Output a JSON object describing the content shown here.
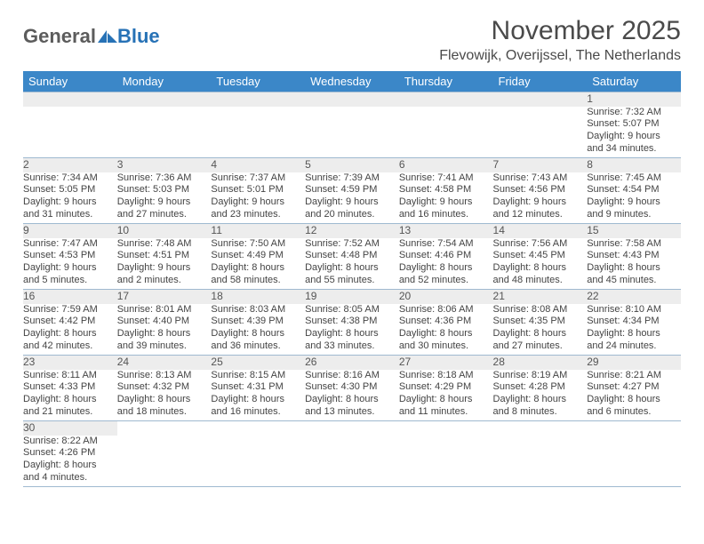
{
  "brand": {
    "part1": "General",
    "part2": "Blue"
  },
  "title": "November 2025",
  "location": "Flevowijk, Overijssel, The Netherlands",
  "colors": {
    "header_bg": "#3b87c8",
    "header_text": "#ffffff",
    "daynum_bg": "#ededed",
    "border": "#9fb9d0",
    "brand_gray": "#5c5c5c",
    "brand_blue": "#2772b6",
    "text": "#444444"
  },
  "weekdays": [
    "Sunday",
    "Monday",
    "Tuesday",
    "Wednesday",
    "Thursday",
    "Friday",
    "Saturday"
  ],
  "weeks": [
    [
      {
        "num": "",
        "sunrise": "",
        "sunset": "",
        "daylight1": "",
        "daylight2": ""
      },
      {
        "num": "",
        "sunrise": "",
        "sunset": "",
        "daylight1": "",
        "daylight2": ""
      },
      {
        "num": "",
        "sunrise": "",
        "sunset": "",
        "daylight1": "",
        "daylight2": ""
      },
      {
        "num": "",
        "sunrise": "",
        "sunset": "",
        "daylight1": "",
        "daylight2": ""
      },
      {
        "num": "",
        "sunrise": "",
        "sunset": "",
        "daylight1": "",
        "daylight2": ""
      },
      {
        "num": "",
        "sunrise": "",
        "sunset": "",
        "daylight1": "",
        "daylight2": ""
      },
      {
        "num": "1",
        "sunrise": "Sunrise: 7:32 AM",
        "sunset": "Sunset: 5:07 PM",
        "daylight1": "Daylight: 9 hours",
        "daylight2": "and 34 minutes."
      }
    ],
    [
      {
        "num": "2",
        "sunrise": "Sunrise: 7:34 AM",
        "sunset": "Sunset: 5:05 PM",
        "daylight1": "Daylight: 9 hours",
        "daylight2": "and 31 minutes."
      },
      {
        "num": "3",
        "sunrise": "Sunrise: 7:36 AM",
        "sunset": "Sunset: 5:03 PM",
        "daylight1": "Daylight: 9 hours",
        "daylight2": "and 27 minutes."
      },
      {
        "num": "4",
        "sunrise": "Sunrise: 7:37 AM",
        "sunset": "Sunset: 5:01 PM",
        "daylight1": "Daylight: 9 hours",
        "daylight2": "and 23 minutes."
      },
      {
        "num": "5",
        "sunrise": "Sunrise: 7:39 AM",
        "sunset": "Sunset: 4:59 PM",
        "daylight1": "Daylight: 9 hours",
        "daylight2": "and 20 minutes."
      },
      {
        "num": "6",
        "sunrise": "Sunrise: 7:41 AM",
        "sunset": "Sunset: 4:58 PM",
        "daylight1": "Daylight: 9 hours",
        "daylight2": "and 16 minutes."
      },
      {
        "num": "7",
        "sunrise": "Sunrise: 7:43 AM",
        "sunset": "Sunset: 4:56 PM",
        "daylight1": "Daylight: 9 hours",
        "daylight2": "and 12 minutes."
      },
      {
        "num": "8",
        "sunrise": "Sunrise: 7:45 AM",
        "sunset": "Sunset: 4:54 PM",
        "daylight1": "Daylight: 9 hours",
        "daylight2": "and 9 minutes."
      }
    ],
    [
      {
        "num": "9",
        "sunrise": "Sunrise: 7:47 AM",
        "sunset": "Sunset: 4:53 PM",
        "daylight1": "Daylight: 9 hours",
        "daylight2": "and 5 minutes."
      },
      {
        "num": "10",
        "sunrise": "Sunrise: 7:48 AM",
        "sunset": "Sunset: 4:51 PM",
        "daylight1": "Daylight: 9 hours",
        "daylight2": "and 2 minutes."
      },
      {
        "num": "11",
        "sunrise": "Sunrise: 7:50 AM",
        "sunset": "Sunset: 4:49 PM",
        "daylight1": "Daylight: 8 hours",
        "daylight2": "and 58 minutes."
      },
      {
        "num": "12",
        "sunrise": "Sunrise: 7:52 AM",
        "sunset": "Sunset: 4:48 PM",
        "daylight1": "Daylight: 8 hours",
        "daylight2": "and 55 minutes."
      },
      {
        "num": "13",
        "sunrise": "Sunrise: 7:54 AM",
        "sunset": "Sunset: 4:46 PM",
        "daylight1": "Daylight: 8 hours",
        "daylight2": "and 52 minutes."
      },
      {
        "num": "14",
        "sunrise": "Sunrise: 7:56 AM",
        "sunset": "Sunset: 4:45 PM",
        "daylight1": "Daylight: 8 hours",
        "daylight2": "and 48 minutes."
      },
      {
        "num": "15",
        "sunrise": "Sunrise: 7:58 AM",
        "sunset": "Sunset: 4:43 PM",
        "daylight1": "Daylight: 8 hours",
        "daylight2": "and 45 minutes."
      }
    ],
    [
      {
        "num": "16",
        "sunrise": "Sunrise: 7:59 AM",
        "sunset": "Sunset: 4:42 PM",
        "daylight1": "Daylight: 8 hours",
        "daylight2": "and 42 minutes."
      },
      {
        "num": "17",
        "sunrise": "Sunrise: 8:01 AM",
        "sunset": "Sunset: 4:40 PM",
        "daylight1": "Daylight: 8 hours",
        "daylight2": "and 39 minutes."
      },
      {
        "num": "18",
        "sunrise": "Sunrise: 8:03 AM",
        "sunset": "Sunset: 4:39 PM",
        "daylight1": "Daylight: 8 hours",
        "daylight2": "and 36 minutes."
      },
      {
        "num": "19",
        "sunrise": "Sunrise: 8:05 AM",
        "sunset": "Sunset: 4:38 PM",
        "daylight1": "Daylight: 8 hours",
        "daylight2": "and 33 minutes."
      },
      {
        "num": "20",
        "sunrise": "Sunrise: 8:06 AM",
        "sunset": "Sunset: 4:36 PM",
        "daylight1": "Daylight: 8 hours",
        "daylight2": "and 30 minutes."
      },
      {
        "num": "21",
        "sunrise": "Sunrise: 8:08 AM",
        "sunset": "Sunset: 4:35 PM",
        "daylight1": "Daylight: 8 hours",
        "daylight2": "and 27 minutes."
      },
      {
        "num": "22",
        "sunrise": "Sunrise: 8:10 AM",
        "sunset": "Sunset: 4:34 PM",
        "daylight1": "Daylight: 8 hours",
        "daylight2": "and 24 minutes."
      }
    ],
    [
      {
        "num": "23",
        "sunrise": "Sunrise: 8:11 AM",
        "sunset": "Sunset: 4:33 PM",
        "daylight1": "Daylight: 8 hours",
        "daylight2": "and 21 minutes."
      },
      {
        "num": "24",
        "sunrise": "Sunrise: 8:13 AM",
        "sunset": "Sunset: 4:32 PM",
        "daylight1": "Daylight: 8 hours",
        "daylight2": "and 18 minutes."
      },
      {
        "num": "25",
        "sunrise": "Sunrise: 8:15 AM",
        "sunset": "Sunset: 4:31 PM",
        "daylight1": "Daylight: 8 hours",
        "daylight2": "and 16 minutes."
      },
      {
        "num": "26",
        "sunrise": "Sunrise: 8:16 AM",
        "sunset": "Sunset: 4:30 PM",
        "daylight1": "Daylight: 8 hours",
        "daylight2": "and 13 minutes."
      },
      {
        "num": "27",
        "sunrise": "Sunrise: 8:18 AM",
        "sunset": "Sunset: 4:29 PM",
        "daylight1": "Daylight: 8 hours",
        "daylight2": "and 11 minutes."
      },
      {
        "num": "28",
        "sunrise": "Sunrise: 8:19 AM",
        "sunset": "Sunset: 4:28 PM",
        "daylight1": "Daylight: 8 hours",
        "daylight2": "and 8 minutes."
      },
      {
        "num": "29",
        "sunrise": "Sunrise: 8:21 AM",
        "sunset": "Sunset: 4:27 PM",
        "daylight1": "Daylight: 8 hours",
        "daylight2": "and 6 minutes."
      }
    ],
    [
      {
        "num": "30",
        "sunrise": "Sunrise: 8:22 AM",
        "sunset": "Sunset: 4:26 PM",
        "daylight1": "Daylight: 8 hours",
        "daylight2": "and 4 minutes."
      },
      {
        "num": "",
        "sunrise": "",
        "sunset": "",
        "daylight1": "",
        "daylight2": ""
      },
      {
        "num": "",
        "sunrise": "",
        "sunset": "",
        "daylight1": "",
        "daylight2": ""
      },
      {
        "num": "",
        "sunrise": "",
        "sunset": "",
        "daylight1": "",
        "daylight2": ""
      },
      {
        "num": "",
        "sunrise": "",
        "sunset": "",
        "daylight1": "",
        "daylight2": ""
      },
      {
        "num": "",
        "sunrise": "",
        "sunset": "",
        "daylight1": "",
        "daylight2": ""
      },
      {
        "num": "",
        "sunrise": "",
        "sunset": "",
        "daylight1": "",
        "daylight2": ""
      }
    ]
  ]
}
